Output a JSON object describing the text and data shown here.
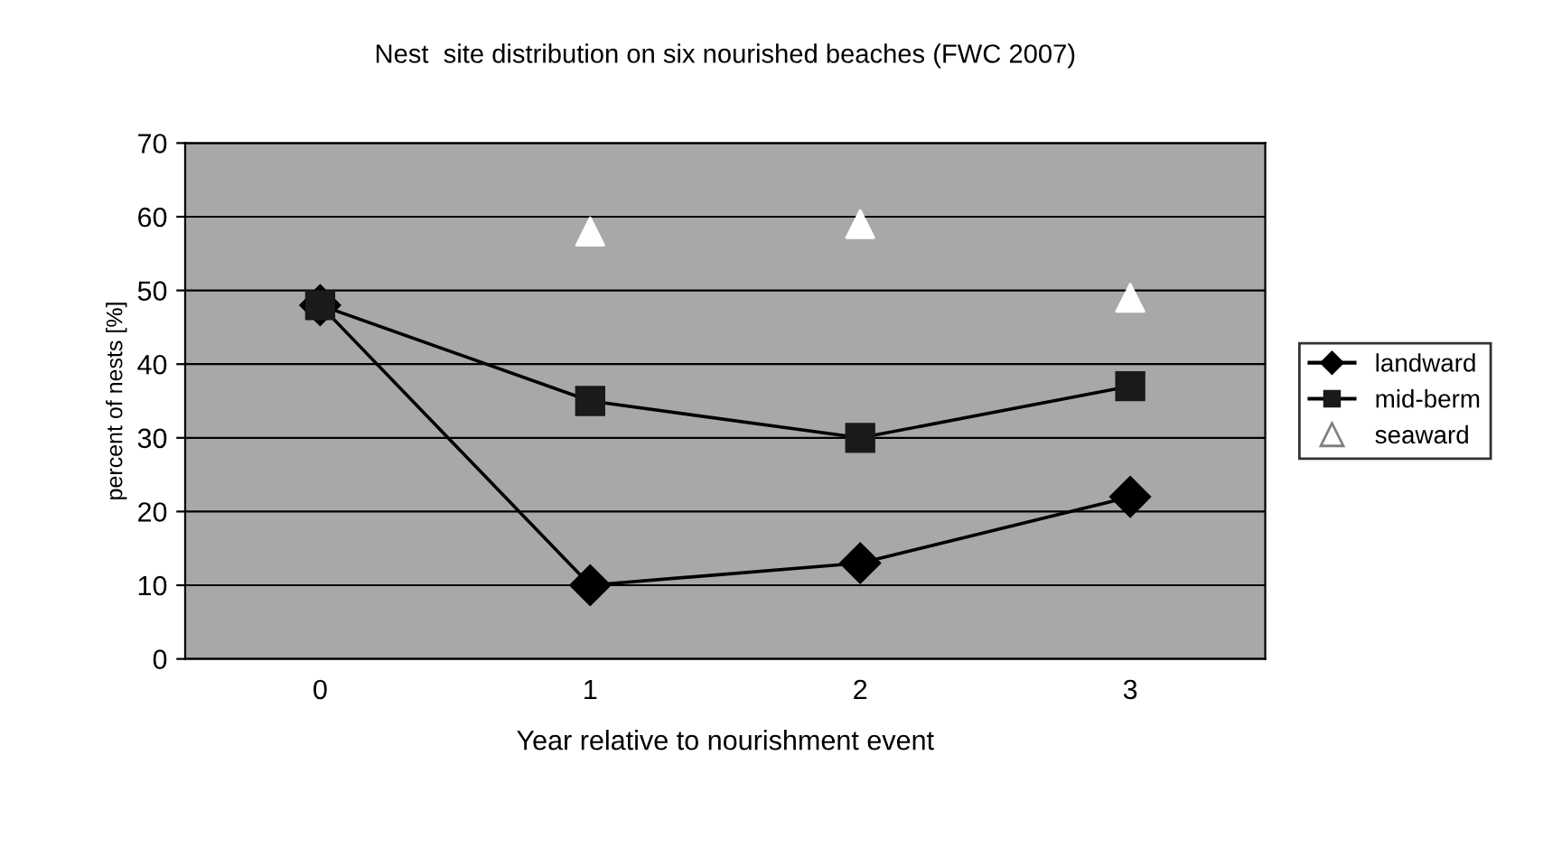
{
  "chart_data": {
    "type": "line",
    "title": "Nest  site distribution on six nourished beaches (FWC 2007)",
    "xlabel": "Year relative to nourishment event",
    "ylabel": "percent of nests [%]",
    "categories": [
      "0",
      "1",
      "2",
      "3"
    ],
    "series": [
      {
        "name": "landward",
        "color": "#000000",
        "marker": "diamond",
        "values": [
          48,
          10,
          13,
          22
        ]
      },
      {
        "name": "mid-berm",
        "color": "#1a1a1a",
        "marker": "square",
        "values": [
          48,
          35,
          30,
          37
        ]
      },
      {
        "name": "seaward",
        "type": "scatter",
        "color": "#ffffff",
        "marker": "triangle",
        "values": [
          null,
          58,
          59,
          49
        ]
      }
    ],
    "ylim": [
      0,
      70
    ],
    "yticks": [
      0,
      10,
      20,
      30,
      40,
      50,
      60,
      70
    ],
    "grid": "y",
    "legend": "right"
  }
}
